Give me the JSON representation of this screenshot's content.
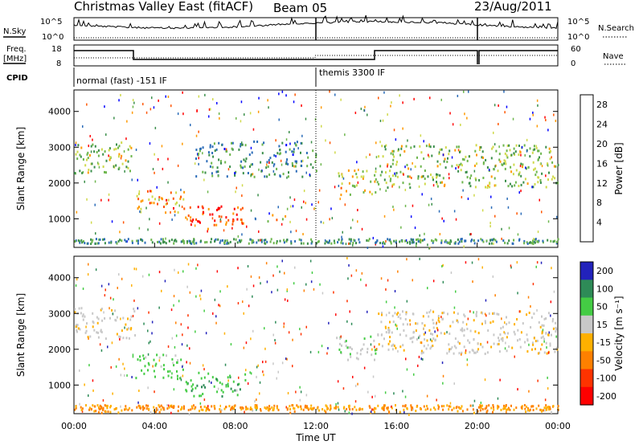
{
  "header": {
    "title": "Christmas Valley East (fitACF)",
    "beam": "Beam 05",
    "date": "23/Aug/2011"
  },
  "strips": {
    "nsky": {
      "left_label": "N.Sky",
      "right_label": "N.Search",
      "ticks_left": [
        "10^5",
        "10^0"
      ],
      "ticks_right": [
        "10^5",
        "10^0"
      ]
    },
    "freq": {
      "left_label_1": "Freq.",
      "left_label_2": "[MHz]",
      "right_label": "Nave",
      "ticks_left": [
        "18",
        "8"
      ],
      "ticks_right": [
        "60",
        "0"
      ]
    },
    "cpid": {
      "label": "CPID",
      "modes": [
        {
          "text": "normal (fast) -151 IF",
          "start_h": 0,
          "end_h": 12
        },
        {
          "text": "themis 3300 IF",
          "start_h": 12,
          "end_h": 24
        }
      ]
    }
  },
  "chart_data": [
    {
      "type": "heatmap",
      "title": "Power",
      "xlabel": "Time UT",
      "ylabel": "Slant Range [km]",
      "xlim": [
        0,
        24
      ],
      "ylim": [
        200,
        4600
      ],
      "x_ticks": [
        "00:00",
        "04:00",
        "08:00",
        "12:00",
        "16:00",
        "20:00",
        "00:00"
      ],
      "y_ticks": [
        "1000",
        "2000",
        "3000",
        "4000"
      ],
      "colorbar": {
        "label": "Power [dB]",
        "ticks": [
          "4",
          "8",
          "12",
          "16",
          "20",
          "24",
          "28"
        ],
        "range": [
          0,
          30
        ],
        "colors": [
          "#0000ff",
          "#2a6bb8",
          "#3b8f4a",
          "#6db64d",
          "#cfd94a",
          "#ff9900",
          "#ff5500",
          "#ff0000"
        ]
      },
      "features": [
        {
          "x": [
            0,
            3
          ],
          "y": [
            2300,
            3200
          ],
          "value_db": 14
        },
        {
          "x": [
            3,
            5.5
          ],
          "y": [
            1200,
            1800
          ],
          "value_db": 22
        },
        {
          "x": [
            5.5,
            8.5
          ],
          "y": [
            700,
            1400
          ],
          "value_db": 28
        },
        {
          "x": [
            9.5,
            10.5
          ],
          "y": [
            950,
            1150
          ],
          "value_db": 20
        },
        {
          "x": [
            6,
            12
          ],
          "y": [
            2200,
            3200
          ],
          "value_db": 8
        },
        {
          "x": [
            13,
            15
          ],
          "y": [
            1700,
            2400
          ],
          "value_db": 18
        },
        {
          "x": [
            15,
            24
          ],
          "y": [
            1900,
            3100
          ],
          "value_db": 14
        }
      ]
    },
    {
      "type": "heatmap",
      "title": "Velocity",
      "xlabel": "Time UT",
      "ylabel": "Slant Range [km]",
      "xlim": [
        0,
        24
      ],
      "ylim": [
        200,
        4600
      ],
      "x_ticks": [
        "00:00",
        "04:00",
        "08:00",
        "12:00",
        "16:00",
        "20:00",
        "00:00"
      ],
      "y_ticks": [
        "1000",
        "2000",
        "3000",
        "4000"
      ],
      "colorbar": {
        "label": "Velocity [m s⁻¹]",
        "ticks": [
          "200",
          "100",
          "50",
          "15",
          "-15",
          "-50",
          "-100",
          "-200"
        ],
        "range": [
          -250,
          250
        ],
        "colors": [
          "#2222bb",
          "#2e8b57",
          "#44cc44",
          "#c8c8c8",
          "#ffb000",
          "#ff8000",
          "#ff3300",
          "#ff0000"
        ]
      },
      "features": [
        {
          "x": [
            0,
            3
          ],
          "y": [
            2300,
            3200
          ],
          "value": 0
        },
        {
          "x": [
            3,
            5.5
          ],
          "y": [
            1200,
            1900
          ],
          "value": 40
        },
        {
          "x": [
            5.5,
            8.5
          ],
          "y": [
            700,
            1400
          ],
          "value": 60
        },
        {
          "x": [
            0.5,
            24
          ],
          "y": [
            250,
            400
          ],
          "value": -40
        },
        {
          "x": [
            13,
            15
          ],
          "y": [
            1700,
            2400
          ],
          "value": 20
        },
        {
          "x": [
            15,
            24
          ],
          "y": [
            1900,
            3100
          ],
          "value": 0
        }
      ]
    }
  ]
}
